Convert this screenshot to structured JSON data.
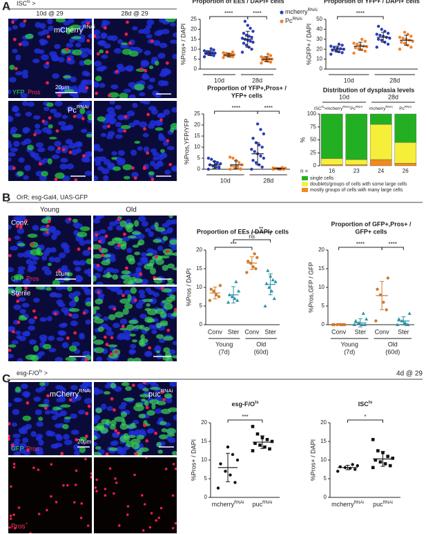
{
  "panel_a": {
    "letter": "A",
    "header": [
      {
        "t": "ISC"
      },
      {
        "sup": "ts"
      },
      {
        "t": " >"
      }
    ],
    "col_labels": [
      "10d @ 29",
      "28d @ 29"
    ],
    "image_labels": {
      "top": [
        {
          "t": "mCherry"
        },
        {
          "sup": "RNAi"
        }
      ],
      "bottom": [
        {
          "t": "Pc"
        },
        {
          "sup": "RNAi"
        }
      ],
      "stain1": "YFP",
      "stain2": "Pros",
      "scale": "20µm"
    }
  },
  "panel_b": {
    "letter": "B",
    "header": "OrR; esg-Gal4, UAS-GFP",
    "col_labels": [
      "Young",
      "Old"
    ],
    "image_labels": {
      "top": "Conv.",
      "bottom": "Sterile",
      "stain1": "GFP",
      "stain2": "Pros",
      "scale": "10µm"
    }
  },
  "panel_c": {
    "letter": "C",
    "header": [
      {
        "t": "esg-F/O"
      },
      {
        "sup": "ts"
      },
      {
        "t": " >"
      }
    ],
    "condition": "4d @ 29",
    "col_labels": [
      [
        {
          "t": "mCherry"
        },
        {
          "sup": "RNAi"
        }
      ],
      [
        {
          "t": "puc"
        },
        {
          "sup": "RNAi"
        }
      ]
    ],
    "image_labels": {
      "stain1": "GFP",
      "stain2": "Pros",
      "scale": "20µm",
      "bottom": [
        {
          "t": "Pros"
        },
        {
          "sup": "+"
        }
      ]
    }
  },
  "chart_data": [
    {
      "type": "dotplot",
      "title": [
        "Proportion of EEs / DAPI+ cells"
      ],
      "ylabel": "%Pros+ / DAPI",
      "ylim": [
        0,
        25
      ],
      "yticks": [
        0,
        5,
        10,
        15,
        20,
        25
      ],
      "groups": [
        {
          "label": "10d"
        },
        {
          "label": "28d"
        }
      ],
      "legend": [
        {
          "name": [
            {
              "t": "mcherry"
            },
            {
              "sup": "RNAi"
            }
          ],
          "color": "#2b3db8"
        },
        {
          "name": [
            {
              "t": "Pc"
            },
            {
              "sup": "RNAi"
            }
          ],
          "color": "#f0822d"
        }
      ],
      "columns": [
        {
          "color": "#2b3db8",
          "marker": "circle",
          "mean": 8,
          "sd": 1.2,
          "points": [
            6.2,
            6.8,
            7.2,
            7.5,
            7.8,
            8,
            8.2,
            8.5,
            8.8,
            9.2,
            9.6,
            10.2
          ]
        },
        {
          "color": "#f0822d",
          "marker": "circle",
          "mean": 7,
          "sd": 0.9,
          "points": [
            5.8,
            6.2,
            6.5,
            6.8,
            7,
            7.2,
            7.4,
            7.6,
            7.9,
            8.2,
            8.6,
            6.4
          ]
        },
        {
          "color": "#2b3db8",
          "marker": "circle",
          "mean": 15,
          "sd": 4,
          "points": [
            8.5,
            10,
            11,
            12,
            13,
            13.5,
            14,
            14.5,
            15,
            15.5,
            16,
            16.5,
            17,
            18,
            19,
            20.5,
            22,
            24
          ]
        },
        {
          "color": "#f0822d",
          "marker": "circle",
          "mean": 5,
          "sd": 1.3,
          "points": [
            3,
            3.5,
            4,
            4.3,
            4.6,
            5,
            5.2,
            5.5,
            5.8,
            6.2,
            6.8,
            7.5
          ]
        }
      ],
      "significance": [
        {
          "label": "****",
          "from": 0,
          "to": 2
        },
        {
          "label": "****",
          "from": 2,
          "to": 3
        }
      ]
    },
    {
      "type": "dotplot",
      "title": [
        "Proportion of YFP+ / DAPI+ cells"
      ],
      "ylabel": "%GFP+ / DAPI",
      "ylim": [
        0,
        50
      ],
      "yticks": [
        0,
        10,
        20,
        30,
        40,
        50
      ],
      "groups": [
        {
          "label": "10d"
        },
        {
          "label": "28d"
        }
      ],
      "columns": [
        {
          "color": "#2b3db8",
          "marker": "circle",
          "mean": 20,
          "sd": 3,
          "points": [
            15,
            16.5,
            17.5,
            18.5,
            19,
            20,
            20.5,
            21,
            22,
            23,
            24,
            25
          ]
        },
        {
          "color": "#f0822d",
          "marker": "circle",
          "mean": 23,
          "sd": 4,
          "points": [
            16,
            18,
            19.5,
            20.5,
            21.5,
            22.5,
            23,
            24,
            25,
            26,
            28,
            30
          ]
        },
        {
          "color": "#2b3db8",
          "marker": "circle",
          "mean": 32,
          "sd": 5,
          "points": [
            22,
            25,
            27,
            29,
            30,
            31,
            32,
            33,
            34,
            35,
            36,
            38,
            40,
            43
          ]
        },
        {
          "color": "#f0822d",
          "marker": "circle",
          "mean": 29,
          "sd": 5,
          "points": [
            20,
            22,
            24,
            26,
            27,
            28,
            29,
            30,
            31,
            32,
            33,
            35,
            37
          ]
        }
      ],
      "significance": [
        {
          "label": "****",
          "from": 0,
          "to": 2
        }
      ]
    },
    {
      "type": "dotplot",
      "title": [
        "Proportion of YFP+,Pros+ /",
        "YFP+ cells"
      ],
      "ylabel": "%Pros,YFP/YFP",
      "ylim": [
        0,
        25
      ],
      "yticks": [
        0,
        5,
        10,
        15,
        20,
        25
      ],
      "groups": [
        {
          "label": "10d"
        },
        {
          "label": "28d"
        }
      ],
      "columns": [
        {
          "color": "#2b3db8",
          "marker": "circle",
          "mean": 2,
          "sd": 1.6,
          "points": [
            0,
            0.5,
            1,
            1.5,
            2,
            2.5,
            3,
            3.5,
            4.5,
            5,
            1,
            2.2
          ]
        },
        {
          "color": "#f0822d",
          "marker": "circle",
          "mean": 2,
          "sd": 1.8,
          "points": [
            0,
            0,
            0.5,
            1,
            1.5,
            2,
            3,
            4,
            5,
            5.5,
            0.2,
            1.2
          ]
        },
        {
          "color": "#2b3db8",
          "marker": "circle",
          "mean": 7,
          "sd": 5,
          "points": [
            0,
            1,
            2,
            3,
            4,
            5,
            6,
            7,
            8,
            9,
            10,
            11,
            12,
            14,
            16,
            18,
            20.5
          ]
        },
        {
          "color": "#f0822d",
          "marker": "circle",
          "mean": 0.3,
          "sd": 0.3,
          "points": [
            0,
            0,
            0,
            0.2,
            0.3,
            0.5,
            0.8,
            0,
            0.4,
            0.6
          ]
        }
      ],
      "significance": [
        {
          "label": "****",
          "from": 0,
          "to": 2
        },
        {
          "label": "****",
          "from": 2,
          "to": 3
        }
      ]
    },
    {
      "type": "stacked_bar",
      "title": [
        "Distribution of dysplasia levels"
      ],
      "ylabel": "%",
      "ylim": [
        0,
        100
      ],
      "yticks": [
        0,
        25,
        50,
        75,
        100
      ],
      "groups": [
        {
          "label": "10d"
        },
        {
          "label": "28d"
        }
      ],
      "categories": [
        [
          {
            "t": "ISC"
          },
          {
            "sup": "ts"
          },
          {
            "t": ">mcherry"
          },
          {
            "sup": "RNAi"
          }
        ],
        [
          {
            "t": "Pc"
          },
          {
            "sup": "RNAi"
          }
        ],
        [
          {
            "t": "mcherry"
          },
          {
            "sup": "RNAi"
          }
        ],
        [
          {
            "t": "Pc"
          },
          {
            "sup": "RNAi"
          }
        ]
      ],
      "n_label": "n =",
      "n": [
        16,
        23,
        24,
        26
      ],
      "series": [
        {
          "name": "single cells",
          "color": "#22b022",
          "values": [
            86,
            88,
            20,
            55
          ]
        },
        {
          "name": "doublets/groups of cells with some large cells",
          "color": "#f5ef3a",
          "values": [
            12,
            10,
            68,
            40
          ]
        },
        {
          "name": "mostly groups of cells with many large cells",
          "color": "#f08a1e",
          "values": [
            2,
            2,
            12,
            5
          ]
        }
      ]
    },
    {
      "type": "dotplot",
      "title": [
        "Proportion of EEs / DAPI+ cells"
      ],
      "ylabel": "%Pros / DAPI",
      "ylim": [
        0,
        20
      ],
      "yticks": [
        0,
        5,
        10,
        15,
        20
      ],
      "categories": [
        "Conv",
        "Ster",
        "Conv",
        "Ster"
      ],
      "groups": [
        {
          "label": "Young",
          "sub": "(7d)"
        },
        {
          "label": "Old",
          "sub": "(60d)"
        }
      ],
      "columns": [
        {
          "color": "#cd7a2e",
          "marker": "circle",
          "mean": 8.5,
          "sd": 1.6,
          "points": [
            6.5,
            7.5,
            8,
            9,
            9.5,
            10.5
          ]
        },
        {
          "color": "#2c93a5",
          "marker": "triangle",
          "mean": 8,
          "sd": 2.2,
          "points": [
            6,
            6.5,
            7,
            7.5,
            8,
            9,
            11.5
          ]
        },
        {
          "color": "#cd7a2e",
          "marker": "circle",
          "mean": 16.5,
          "sd": 1.7,
          "points": [
            14,
            15,
            15.5,
            16.5,
            17,
            18,
            19
          ]
        },
        {
          "color": "#2c93a5",
          "marker": "triangle",
          "mean": 10.8,
          "sd": 2.8,
          "points": [
            5,
            7,
            9,
            10,
            11,
            11.5,
            12,
            13,
            14.5
          ]
        }
      ],
      "significance": [
        {
          "label": "***",
          "from": 0,
          "to": 2
        },
        {
          "label": "ns",
          "from": 1,
          "to": 3
        },
        {
          "label": "**",
          "from": 2,
          "to": 3
        }
      ]
    },
    {
      "type": "dotplot",
      "title": [
        "Proportion of GFP+,Pros+ /",
        "GFP+ cells"
      ],
      "ylabel": "%Pros,GFP / GFP",
      "ylim": [
        0,
        20
      ],
      "yticks": [
        0,
        5,
        10,
        15,
        20
      ],
      "categories": [
        "Conv",
        "Ster",
        "Conv",
        "Ster"
      ],
      "groups": [
        {
          "label": "Young",
          "sub": "(7d)"
        },
        {
          "label": "Old",
          "sub": "(60d)"
        }
      ],
      "columns": [
        {
          "color": "#cd7a2e",
          "marker": "circle",
          "mean": 0.1,
          "sd": 0.2,
          "points": [
            0,
            0,
            0,
            0,
            0,
            0,
            0
          ]
        },
        {
          "color": "#2c93a5",
          "marker": "triangle",
          "mean": 0.5,
          "sd": 1.1,
          "points": [
            0,
            0,
            0,
            0.5,
            1,
            1.5,
            3
          ]
        },
        {
          "color": "#cd7a2e",
          "marker": "circle",
          "mean": 7.8,
          "sd": 3.8,
          "points": [
            1,
            4,
            6,
            8,
            9.5,
            12.5
          ]
        },
        {
          "color": "#2c93a5",
          "marker": "triangle",
          "mean": 1,
          "sd": 1.1,
          "points": [
            0,
            0,
            0.5,
            1,
            1.5,
            3,
            0
          ]
        }
      ],
      "significance": [
        {
          "label": "****",
          "from": 0,
          "to": 2
        },
        {
          "label": "****",
          "from": 2,
          "to": 3
        }
      ]
    },
    {
      "type": "dotplot",
      "title": [
        [
          {
            "t": "esg-F/O"
          },
          {
            "sup": "ts"
          }
        ]
      ],
      "ylabel": "%Pros+ / DAPI",
      "ylim": [
        0,
        20
      ],
      "yticks": [
        0,
        5,
        10,
        15,
        20
      ],
      "categories": [
        [
          {
            "t": "mcherry"
          },
          {
            "sup": "RNAi"
          }
        ],
        [
          {
            "t": "puc"
          },
          {
            "sup": "RNAi"
          }
        ]
      ],
      "columns": [
        {
          "color": "#111111",
          "marker": "circle",
          "mean": 8,
          "sd": 3.8,
          "points": [
            2.5,
            4,
            6,
            7,
            9,
            10,
            11.5,
            13.5
          ]
        },
        {
          "color": "#111111",
          "marker": "square",
          "mean": 14.8,
          "sd": 1.7,
          "points": [
            12.5,
            13,
            13.5,
            14,
            14.5,
            15,
            15.5,
            16,
            17,
            19
          ]
        }
      ],
      "significance": [
        {
          "label": "***",
          "from": 0,
          "to": 1
        }
      ]
    },
    {
      "type": "dotplot",
      "title": [
        [
          {
            "t": "ISC"
          },
          {
            "sup": "ts"
          }
        ]
      ],
      "ylabel": "%Pros+ / DAPI",
      "ylim": [
        0,
        20
      ],
      "yticks": [
        0,
        5,
        10,
        15,
        20
      ],
      "categories": [
        [
          {
            "t": "mcherry"
          },
          {
            "sup": "RNAi"
          }
        ],
        [
          {
            "t": "puc"
          },
          {
            "sup": "RNAi"
          }
        ]
      ],
      "columns": [
        {
          "color": "#111111",
          "marker": "circle",
          "mean": 8,
          "sd": 0.6,
          "points": [
            7,
            7.5,
            7.8,
            8,
            8.2,
            8.5,
            8.8
          ]
        },
        {
          "color": "#111111",
          "marker": "square",
          "mean": 10.3,
          "sd": 2,
          "points": [
            8,
            8.5,
            9,
            9.5,
            10,
            10.5,
            11,
            12,
            12.5,
            15.5
          ]
        }
      ],
      "significance": [
        {
          "label": "*",
          "from": 0,
          "to": 1
        }
      ]
    }
  ]
}
